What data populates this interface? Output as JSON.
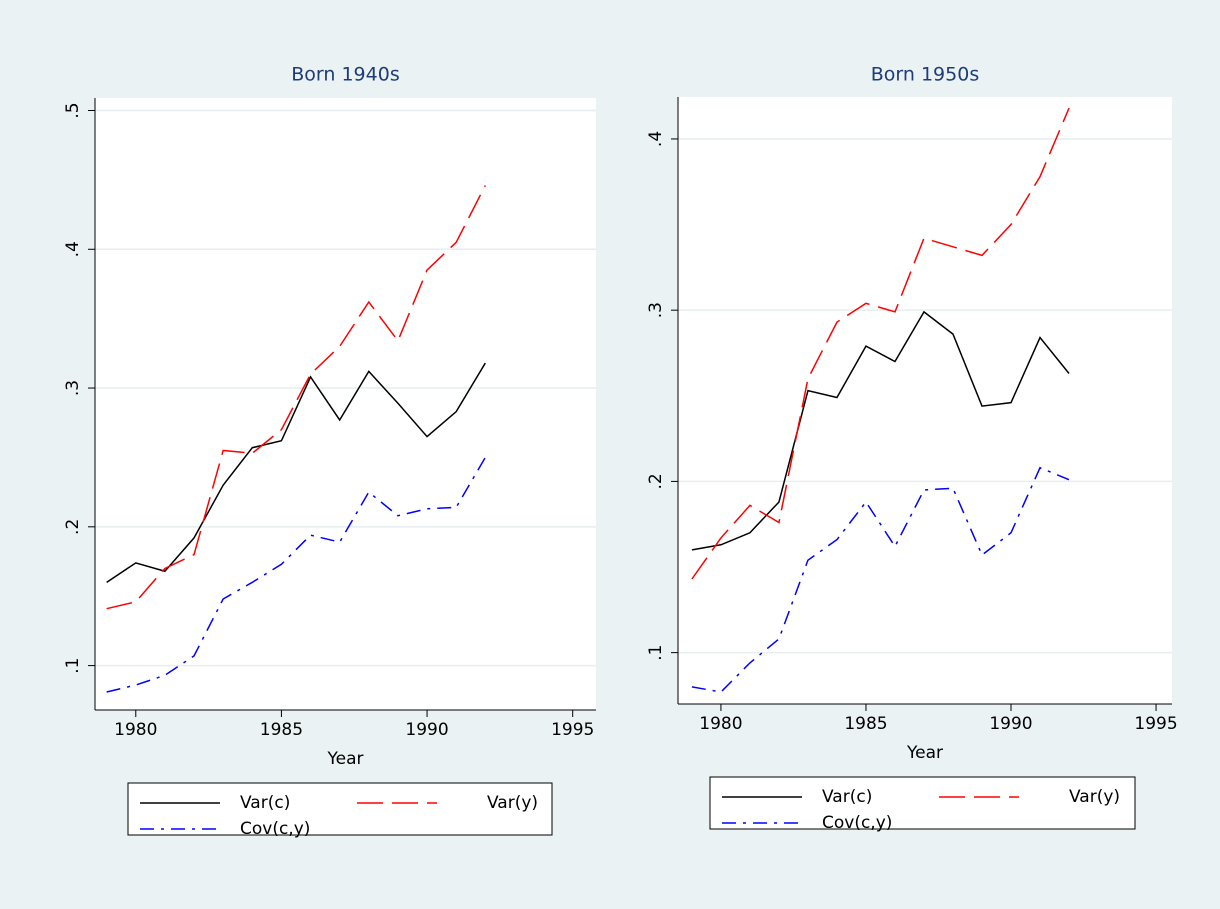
{
  "chart_data": [
    {
      "type": "line",
      "title": "Born 1940s",
      "x_label": "Year",
      "x": [
        1979,
        1980,
        1981,
        1982,
        1983,
        1984,
        1985,
        1986,
        1987,
        1988,
        1989,
        1990,
        1991,
        1992
      ],
      "xlim": [
        1978.6,
        1995.8
      ],
      "xticks": [
        1980,
        1985,
        1990,
        1995
      ],
      "ylim": [
        0.068,
        0.509
      ],
      "yticks": [
        {
          "value": 0.1,
          "label": ".1"
        },
        {
          "value": 0.2,
          "label": ".2"
        },
        {
          "value": 0.3,
          "label": ".3"
        },
        {
          "value": 0.4,
          "label": ".4"
        },
        {
          "value": 0.5,
          "label": ".5"
        }
      ],
      "grid": true,
      "series": [
        {
          "name": "Var(c)",
          "color": "#000000",
          "dash": "solid",
          "values": [
            0.16,
            0.174,
            0.168,
            0.192,
            0.23,
            0.257,
            0.262,
            0.308,
            0.277,
            0.312,
            0.289,
            0.265,
            0.283,
            0.318
          ]
        },
        {
          "name": "Var(y)",
          "color": "#ff0000",
          "dash": "longdash",
          "values": [
            0.141,
            0.146,
            0.17,
            0.18,
            0.255,
            0.253,
            0.27,
            0.31,
            0.33,
            0.362,
            0.334,
            0.385,
            0.405,
            0.446
          ]
        },
        {
          "name": "Cov(c,y)",
          "color": "#0000ff",
          "dash": "dashdot",
          "values": [
            0.081,
            0.086,
            0.093,
            0.107,
            0.148,
            0.16,
            0.173,
            0.194,
            0.189,
            0.225,
            0.208,
            0.213,
            0.214,
            0.25
          ]
        }
      ]
    },
    {
      "type": "line",
      "title": "Born 1950s",
      "x_label": "Year",
      "x": [
        1979,
        1980,
        1981,
        1982,
        1983,
        1984,
        1985,
        1986,
        1987,
        1988,
        1989,
        1990,
        1991,
        1992
      ],
      "xlim": [
        1978.52,
        1995.55
      ],
      "xticks": [
        1980,
        1985,
        1990,
        1995
      ],
      "ylim": [
        0.07,
        0.4245
      ],
      "yticks": [
        {
          "value": 0.1,
          "label": ".1"
        },
        {
          "value": 0.2,
          "label": ".2"
        },
        {
          "value": 0.3,
          "label": ".3"
        },
        {
          "value": 0.4,
          "label": ".4"
        }
      ],
      "grid": true,
      "series": [
        {
          "name": "Var(c)",
          "color": "#000000",
          "dash": "solid",
          "values": [
            0.16,
            0.163,
            0.17,
            0.188,
            0.253,
            0.249,
            0.279,
            0.27,
            0.299,
            0.286,
            0.244,
            0.246,
            0.284,
            0.263
          ]
        },
        {
          "name": "Var(y)",
          "color": "#ff0000",
          "dash": "longdash",
          "values": [
            0.143,
            0.167,
            0.186,
            0.176,
            0.26,
            0.293,
            0.304,
            0.299,
            0.342,
            0.337,
            0.332,
            0.35,
            0.378,
            0.418
          ]
        },
        {
          "name": "Cov(c,y)",
          "color": "#0000ff",
          "dash": "dashdot",
          "values": [
            0.08,
            0.077,
            0.094,
            0.108,
            0.154,
            0.166,
            0.188,
            0.162,
            0.195,
            0.196,
            0.157,
            0.17,
            0.208,
            0.201
          ]
        }
      ]
    }
  ]
}
